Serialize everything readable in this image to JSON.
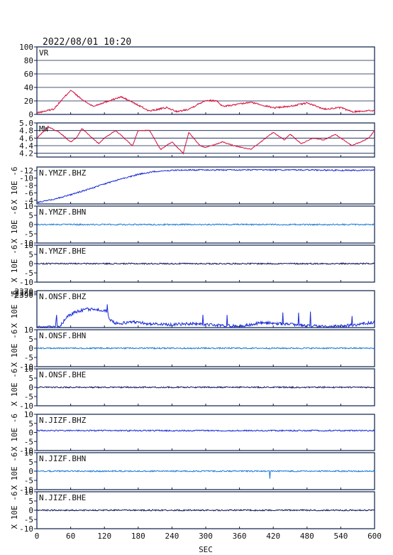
{
  "header": {
    "timestamp": "2022/08/01 10:20"
  },
  "xaxis": {
    "label": "SEC",
    "ticks": [
      "0",
      "60",
      "120",
      "180",
      "240",
      "300",
      "360",
      "420",
      "480",
      "540",
      "600"
    ]
  },
  "colors": {
    "red": "#d40d3a",
    "blue": "#1a2bd6",
    "lightblue": "#1a7ad6",
    "navy": "#10185c",
    "frame": "#0b1e4a"
  },
  "chart_data": [
    {
      "type": "line",
      "title": "VR",
      "ylabel": "",
      "ylim": [
        0,
        100
      ],
      "yticks": [
        "0",
        "20",
        "40",
        "60",
        "80",
        "100"
      ],
      "grid": true,
      "color": "red",
      "series": [
        {
          "x": [
            0,
            30,
            60,
            80,
            100,
            120,
            150,
            170,
            200,
            230,
            250,
            270,
            300,
            320,
            330,
            350,
            380,
            420,
            450,
            480,
            510,
            540,
            560,
            600
          ],
          "values": [
            2,
            8,
            36,
            22,
            12,
            18,
            26,
            18,
            5,
            10,
            4,
            8,
            21,
            20,
            12,
            14,
            18,
            10,
            12,
            17,
            8,
            10,
            4,
            6
          ]
        }
      ]
    },
    {
      "type": "line",
      "title": "MW",
      "ylabel": "",
      "ylim": [
        4.1,
        5.0
      ],
      "yticks": [
        "4.2",
        "4.4",
        "4.6",
        "4.8",
        "5.0"
      ],
      "grid": true,
      "color": "red",
      "series": [
        {
          "x": [
            0,
            20,
            40,
            60,
            70,
            80,
            110,
            120,
            140,
            170,
            180,
            200,
            220,
            240,
            260,
            270,
            290,
            300,
            330,
            350,
            380,
            420,
            440,
            450,
            470,
            490,
            510,
            530,
            560,
            590,
            600
          ],
          "values": [
            4.6,
            4.9,
            4.75,
            4.5,
            4.6,
            4.85,
            4.45,
            4.6,
            4.8,
            4.4,
            4.8,
            4.8,
            4.3,
            4.5,
            4.2,
            4.75,
            4.4,
            4.35,
            4.5,
            4.4,
            4.3,
            4.75,
            4.55,
            4.7,
            4.45,
            4.6,
            4.55,
            4.7,
            4.4,
            4.6,
            4.8
          ]
        }
      ]
    },
    {
      "type": "line",
      "title": "N.YMZF.BHZ",
      "ylabel": "X 10E -6",
      "ylim": [
        -3,
        -13
      ],
      "yticks": [
        "-4",
        "-6",
        "-8",
        "-10",
        "-12"
      ],
      "grid": false,
      "color": "blue",
      "series": [
        {
          "x": [
            0,
            30,
            60,
            90,
            120,
            150,
            180,
            210,
            240,
            270,
            300,
            360,
            420,
            480,
            540,
            600
          ],
          "values": [
            -3.4,
            -4.3,
            -5.5,
            -6.9,
            -8.4,
            -9.8,
            -11.0,
            -11.8,
            -12.1,
            -12.2,
            -12.2,
            -12.2,
            -12.2,
            -12.2,
            -12.1,
            -12.1
          ]
        }
      ]
    },
    {
      "type": "line",
      "title": "N.YMZF.BHN",
      "ylabel": "X 10E -6",
      "ylim": [
        -10,
        10
      ],
      "yticks": [
        "-10",
        "-5",
        "0",
        "5",
        "10"
      ],
      "grid": false,
      "color": "lightblue",
      "series": [
        {
          "x": [
            0,
            600
          ],
          "values": [
            0,
            0
          ]
        }
      ]
    },
    {
      "type": "line",
      "title": "N.YMZF.BHE",
      "ylabel": "X 10E -6",
      "ylim": [
        -10,
        10
      ],
      "yticks": [
        "-10",
        "-5",
        "0",
        "5",
        "10"
      ],
      "grid": false,
      "color": "navy",
      "series": [
        {
          "x": [
            0,
            600
          ],
          "values": [
            0,
            0
          ]
        }
      ]
    },
    {
      "type": "line",
      "title": "N.ONSF.BHZ",
      "ylabel": "X 10E -6",
      "ylim": [
        -2590,
        -2365
      ],
      "yticks": [
        "-2370",
        "-2380",
        "-2390"
      ],
      "grid": false,
      "color": "blue",
      "series": [
        {
          "x": [
            0,
            20,
            40,
            55,
            70,
            90,
            110,
            125,
            130,
            140,
            160,
            180,
            200,
            240,
            280,
            320,
            360,
            400,
            440,
            480,
            520,
            560,
            600
          ],
          "values": [
            -2589,
            -2588,
            -2585,
            -2520,
            -2493,
            -2478,
            -2482,
            -2492,
            -2545,
            -2565,
            -2560,
            -2555,
            -2568,
            -2572,
            -2565,
            -2576,
            -2582,
            -2560,
            -2568,
            -2578,
            -2585,
            -2575,
            -2558
          ]
        }
      ]
    },
    {
      "type": "line",
      "title": "N.ONSF.BHN",
      "ylabel": "X 10E -6",
      "ylim": [
        -10,
        10
      ],
      "yticks": [
        "-10",
        "-5",
        "0",
        "5",
        "10"
      ],
      "grid": false,
      "color": "lightblue",
      "series": [
        {
          "x": [
            0,
            600
          ],
          "values": [
            0,
            0
          ]
        }
      ]
    },
    {
      "type": "line",
      "title": "N.ONSF.BHE",
      "ylabel": "X 10E -6",
      "ylim": [
        -10,
        10
      ],
      "yticks": [
        "-10",
        "-5",
        "0",
        "5",
        "10"
      ],
      "grid": false,
      "color": "navy",
      "series": [
        {
          "x": [
            0,
            600
          ],
          "values": [
            0,
            0
          ]
        }
      ]
    },
    {
      "type": "line",
      "title": "N.JIZF.BHZ",
      "ylabel": "X 10E -6",
      "ylim": [
        -10,
        10
      ],
      "yticks": [
        "-10",
        "-5",
        "0",
        "5",
        "10"
      ],
      "grid": false,
      "color": "blue",
      "series": [
        {
          "x": [
            0,
            600
          ],
          "values": [
            1,
            1
          ]
        }
      ]
    },
    {
      "type": "line",
      "title": "N.JIZF.BHN",
      "ylabel": "X 10E -6",
      "ylim": [
        -10,
        10
      ],
      "yticks": [
        "-10",
        "-5",
        "0",
        "5",
        "10"
      ],
      "grid": false,
      "color": "lightblue",
      "series": [
        {
          "x": [
            0,
            600
          ],
          "values": [
            0,
            0
          ]
        }
      ]
    },
    {
      "type": "line",
      "title": "N.JIZF.BHE",
      "ylabel": "X 10E -6",
      "ylim": [
        -10,
        10
      ],
      "yticks": [
        "-10",
        "-5",
        "0",
        "5",
        "10"
      ],
      "grid": false,
      "color": "navy",
      "series": [
        {
          "x": [
            0,
            600
          ],
          "values": [
            0,
            0
          ]
        }
      ]
    }
  ]
}
